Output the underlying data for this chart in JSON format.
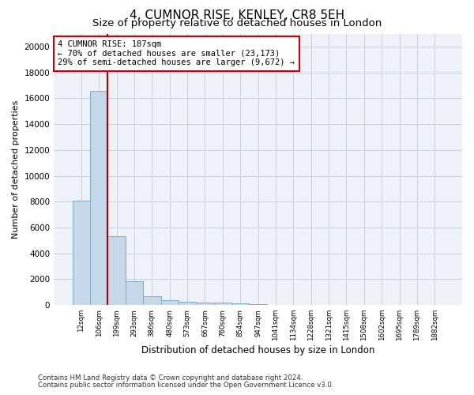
{
  "title": "4, CUMNOR RISE, KENLEY, CR8 5EH",
  "subtitle": "Size of property relative to detached houses in London",
  "xlabel": "Distribution of detached houses by size in London",
  "ylabel": "Number of detached properties",
  "categories": [
    "12sqm",
    "106sqm",
    "199sqm",
    "293sqm",
    "386sqm",
    "480sqm",
    "573sqm",
    "667sqm",
    "760sqm",
    "854sqm",
    "947sqm",
    "1041sqm",
    "1134sqm",
    "1228sqm",
    "1321sqm",
    "1415sqm",
    "1508sqm",
    "1602sqm",
    "1695sqm",
    "1789sqm",
    "1882sqm"
  ],
  "values": [
    8100,
    16600,
    5300,
    1850,
    700,
    350,
    270,
    200,
    170,
    120,
    60,
    30,
    15,
    8,
    5,
    3,
    2,
    2,
    1,
    1,
    1
  ],
  "bar_color": "#c5d8ea",
  "bar_edge_color": "#7aaecb",
  "marker_line_bin": 1,
  "marker_line_color": "#aa0000",
  "annotation_line1": "4 CUMNOR RISE: 187sqm",
  "annotation_line2": "← 70% of detached houses are smaller (23,173)",
  "annotation_line3": "29% of semi-detached houses are larger (9,672) →",
  "annotation_box_color": "#cc0000",
  "ylim": [
    0,
    21000
  ],
  "yticks": [
    0,
    2000,
    4000,
    6000,
    8000,
    10000,
    12000,
    14000,
    16000,
    18000,
    20000
  ],
  "footnote1": "Contains HM Land Registry data © Crown copyright and database right 2024.",
  "footnote2": "Contains public sector information licensed under the Open Government Licence v3.0.",
  "bg_color": "#ffffff",
  "plot_bg_color": "#eef2f7",
  "grid_color": "#c8d0dc",
  "title_fontsize": 11,
  "subtitle_fontsize": 9.5,
  "ylabel_fontsize": 8,
  "xlabel_fontsize": 8.5
}
